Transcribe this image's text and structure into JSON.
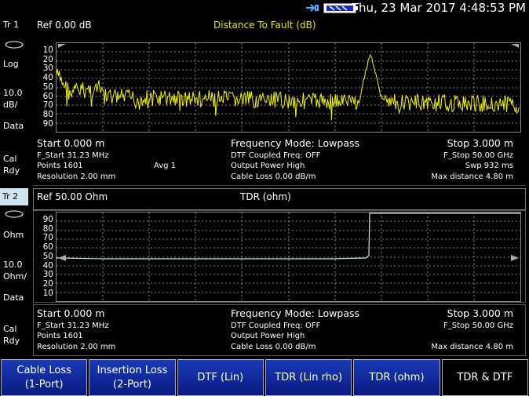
{
  "status": {
    "datetime": "Thu, 23 Mar 2017 4:48:53 PM"
  },
  "trace1": {
    "tr_label": "Tr 1",
    "ref": "Ref 0.00 dB",
    "title": "Distance To Fault (dB)",
    "scale_type": "Log",
    "scale_value": "10.0",
    "scale_unit": "dB/",
    "data_label": "Data",
    "cal": "Cal",
    "rdy": "Rdy",
    "y_ticks": [
      "10",
      "20",
      "30",
      "40",
      "50",
      "60",
      "70",
      "80",
      "90"
    ],
    "start": "Start 0.000 m",
    "mode": "Frequency Mode: Lowpass",
    "stop": "Stop 3.000 m",
    "f_start": "F_Start 31.23 MHz",
    "points": "Points 1601",
    "avg": "Avg   1",
    "resolution": "Resolution 2.00 mm",
    "dtf_coupled": "DTF Coupled Freq:  OFF",
    "output_power": "Output Power High",
    "cable_loss": "Cable Loss 0.00  dB/m",
    "f_stop": "F_Stop 50.00 GHz",
    "swp": "Swp 932 ms",
    "max_distance": "Max distance 4.80  m",
    "trace_color": "#f2f200"
  },
  "trace2": {
    "tr_label": "Tr 2",
    "ref": "Ref 50.00 Ohm",
    "title": "TDR (ohm)",
    "scale_type": "Ohm",
    "scale_value": "10.0",
    "scale_unit": "Ohm/",
    "data_label": "Data",
    "cal": "Cal",
    "rdy": "Rdy",
    "y_ticks": [
      "90",
      "80",
      "70",
      "60",
      "50",
      "40",
      "30",
      "20",
      "10"
    ],
    "start": "Start 0.000 m",
    "mode": "Frequency Mode: Lowpass",
    "stop": "Stop 3.000 m",
    "f_start": "F_Start 31.23 MHz",
    "points": "Points 1601",
    "resolution": "Resolution 2.00 mm",
    "dtf_coupled": "DTF Coupled Freq:  OFF",
    "output_power": "Output Power High",
    "cable_loss": "Cable Loss 0.00  dB/m",
    "f_stop": "F_Stop 50.00 GHz",
    "max_distance": "Max distance 4.80  m",
    "trace_color": "#c8e8f0"
  },
  "softkeys": [
    {
      "line1": "Cable Loss",
      "line2": "(1-Port)"
    },
    {
      "line1": "Insertion Loss",
      "line2": "(2-Port)"
    },
    {
      "line1": "DTF (Lin)",
      "line2": ""
    },
    {
      "line1": "TDR (Lin rho)",
      "line2": ""
    },
    {
      "line1": "TDR (ohm)",
      "line2": ""
    },
    {
      "line1": "TDR & DTF",
      "line2": ""
    }
  ]
}
